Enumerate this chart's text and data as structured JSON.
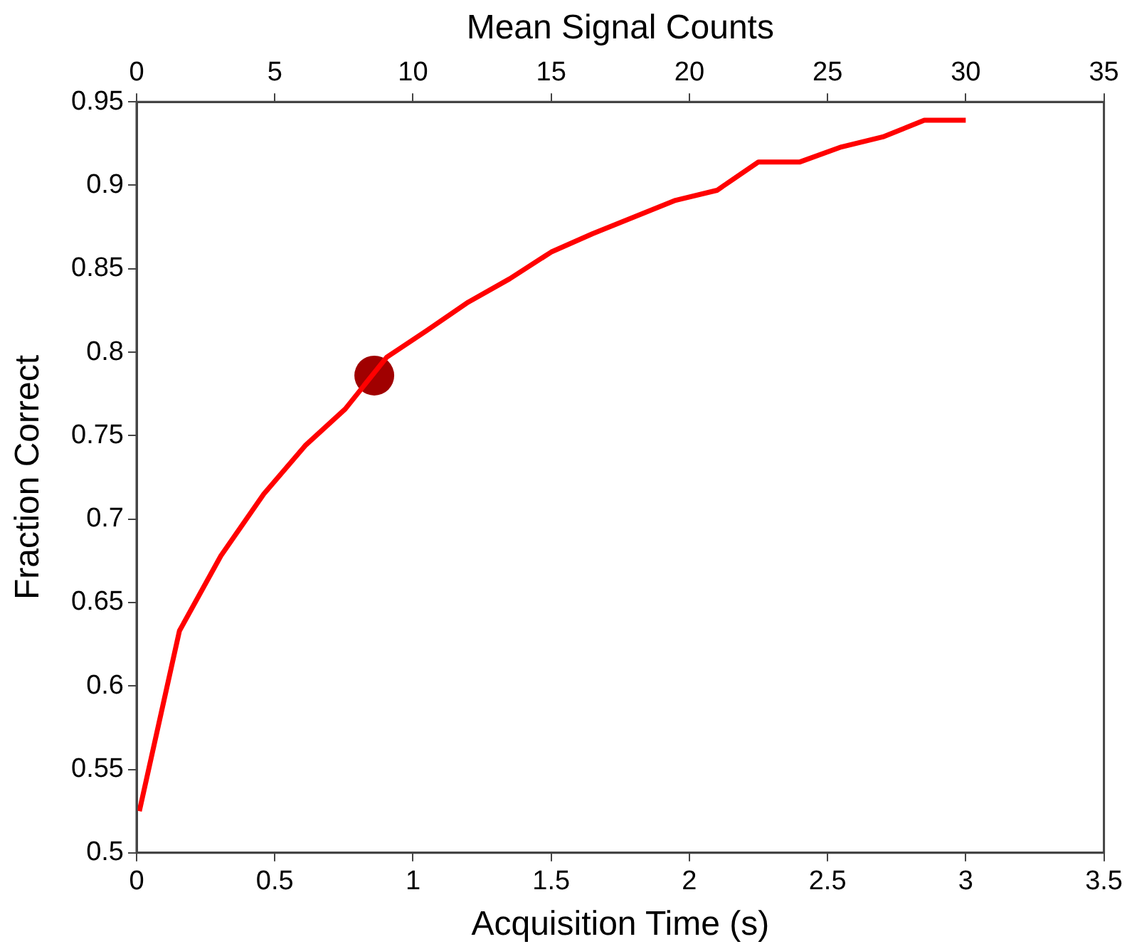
{
  "chart_data": {
    "type": "line",
    "xlabel": "Acquisition Time (s)",
    "ylabel": "Fraction Correct",
    "x2label": "Mean Signal Counts",
    "xlim": [
      0,
      3.5
    ],
    "xticks": [
      0,
      0.5,
      1,
      1.5,
      2,
      2.5,
      3,
      3.5
    ],
    "x2lim": [
      0,
      35
    ],
    "x2ticks": [
      0,
      5,
      10,
      15,
      20,
      25,
      30,
      35
    ],
    "ylim": [
      0.5,
      0.95
    ],
    "yticks": [
      0.5,
      0.55,
      0.6,
      0.65,
      0.7,
      0.75,
      0.8,
      0.85,
      0.9,
      0.95
    ],
    "grid": false,
    "legend": false,
    "marker": "none",
    "line_style": "solid",
    "series": [
      {
        "color": "#ff0000",
        "x": [
          0.01,
          0.155,
          0.305,
          0.46,
          0.61,
          0.755,
          0.905,
          1.05,
          1.2,
          1.35,
          1.5,
          1.65,
          1.95,
          2.1,
          2.25,
          2.4,
          2.55,
          2.7,
          2.85,
          3.0
        ],
        "values": [
          0.525,
          0.633,
          0.678,
          0.715,
          0.744,
          0.766,
          0.797,
          0.813,
          0.83,
          0.844,
          0.86,
          0.871,
          0.891,
          0.897,
          0.914,
          0.914,
          0.923,
          0.929,
          0.939,
          0.939
        ]
      },
      {
        "type": "scatter",
        "marker": "circle",
        "color": "#a00000",
        "x": [
          0.86
        ],
        "values": [
          0.786
        ]
      }
    ]
  }
}
